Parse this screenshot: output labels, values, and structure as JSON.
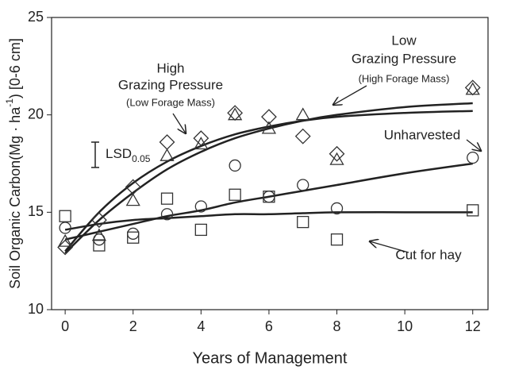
{
  "chart_data": {
    "type": "scatter",
    "xlabel": "Years of Management",
    "ylabel": [
      "Soil Organic Carbon(Mg · ha",
      "-1",
      ") [0-6 cm]"
    ],
    "x": [
      0,
      1,
      2,
      3,
      4,
      5,
      6,
      7,
      8,
      12
    ],
    "xlim": [
      -0.4,
      12.45
    ],
    "xticks": [
      0,
      2,
      4,
      6,
      8,
      10,
      12
    ],
    "ylim": [
      10,
      25
    ],
    "yticks": [
      10,
      15,
      20,
      25
    ],
    "series": [
      {
        "marker": "diamond",
        "color": "#333333",
        "values": [
          13.2,
          14.6,
          16.3,
          18.6,
          18.8,
          20.1,
          19.9,
          18.9,
          18.0,
          21.4
        ]
      },
      {
        "marker": "triangle",
        "color": "#333333",
        "values": [
          13.5,
          13.8,
          15.6,
          17.9,
          18.5,
          20.0,
          19.3,
          20.0,
          17.7,
          21.3
        ]
      },
      {
        "marker": "circle",
        "color": "#333333",
        "values": [
          14.2,
          13.6,
          13.9,
          14.9,
          15.3,
          17.4,
          15.8,
          16.4,
          15.2,
          17.8
        ]
      },
      {
        "marker": "square",
        "color": "#333333",
        "values": [
          14.8,
          13.3,
          13.7,
          15.7,
          14.1,
          15.9,
          15.8,
          14.5,
          13.6,
          15.1
        ]
      }
    ],
    "fit_x": [
      0,
      1,
      2,
      3,
      4,
      5,
      6,
      7,
      8,
      10,
      12
    ],
    "fits": [
      {
        "color": "#222222",
        "values": [
          13.0,
          15.0,
          16.5,
          17.6,
          18.4,
          19.0,
          19.4,
          19.7,
          19.9,
          20.1,
          20.2
        ]
      },
      {
        "color": "#222222",
        "values": [
          12.9,
          14.6,
          16.0,
          17.2,
          18.1,
          18.8,
          19.3,
          19.7,
          20.0,
          20.4,
          20.6
        ]
      },
      {
        "color": "#222222",
        "values": [
          13.6,
          14.0,
          14.4,
          14.8,
          15.1,
          15.5,
          15.8,
          16.1,
          16.4,
          17.0,
          17.5
        ]
      },
      {
        "color": "#222222",
        "values": [
          14.1,
          14.4,
          14.6,
          14.7,
          14.8,
          14.9,
          14.9,
          14.95,
          15.0,
          15.0,
          15.0
        ]
      }
    ],
    "annotations": {
      "high": [
        "High",
        "Grazing Pressure",
        "(Low Forage Mass)"
      ],
      "low": [
        "Low",
        "Grazing Pressure",
        "(High Forage Mass)"
      ],
      "unharvested": "Unharvested",
      "hay": "Cut for hay"
    },
    "lsd": {
      "label": "LSD",
      "sub": "0.05",
      "low": 17.3,
      "high": 18.6
    }
  }
}
